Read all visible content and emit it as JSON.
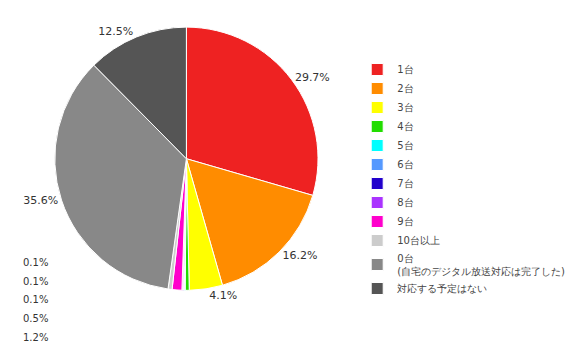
{
  "chart_data": {
    "type": "pie",
    "categories": [
      "1台",
      "2台",
      "3台",
      "4台",
      "5台",
      "6台",
      "7台",
      "8台",
      "9台",
      "10台以上",
      "0台\n(自宅のデジタル放送対応は完了した)",
      "対応する予定はない"
    ],
    "values": [
      29.7,
      16.2,
      4.1,
      0.5,
      0.1,
      0.1,
      0.1,
      0.1,
      1.2,
      0.5,
      35.6,
      12.5
    ],
    "value_labels": [
      "29.7%",
      "16.2%",
      "4.1%",
      null,
      null,
      null,
      null,
      null,
      null,
      null,
      "35.6%",
      "12.5%"
    ],
    "colors": [
      "#ee2222",
      "#ff8c00",
      "#ffff00",
      "#22dd00",
      "#00ffff",
      "#5599ff",
      "#2200cc",
      "#aa33ff",
      "#ff00cc",
      "#cccccc",
      "#888888",
      "#555555"
    ],
    "annotations": [
      "0.1%",
      "0.1%",
      "0.1%",
      "0.5%",
      "1.2%"
    ],
    "legend": "right"
  }
}
